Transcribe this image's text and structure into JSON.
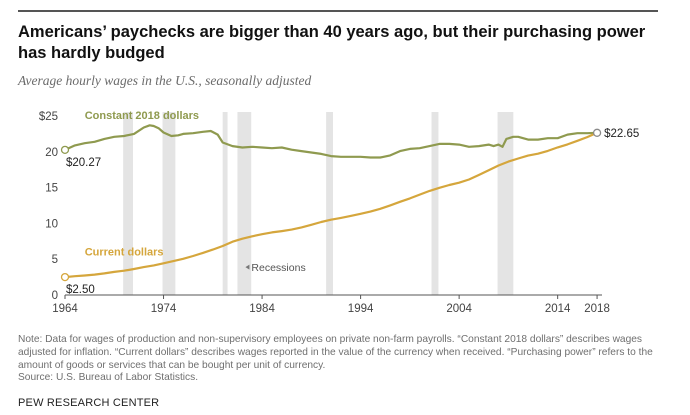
{
  "title": "Americans’ paychecks are bigger than 40 years ago, but their purchasing power has hardly budged",
  "subtitle": "Average hourly wages in the U.S., seasonally adjusted",
  "note": "Note: Data for wages of production and non-supervisory employees on private non-farm payrolls. “Constant 2018 dollars” describes wages adjusted for inflation. “Current dollars” describes wages reported in the value of the currency when received. “Purchasing power” refers to the amount of goods or services that can be bought per unit of currency.",
  "source": "Source: U.S. Bureau of Labor Statistics.",
  "brand": "PEW RESEARCH CENTER",
  "colors": {
    "constant": "#8f9a4f",
    "current": "#d5a63c",
    "recession": "#e4e4e4",
    "axis": "#555555",
    "text": "#444444"
  },
  "chart_data": {
    "type": "line",
    "title": "Americans’ paychecks are bigger than 40 years ago, but their purchasing power has hardly budged",
    "subtitle": "Average hourly wages in the U.S., seasonally adjusted",
    "xlim": [
      1964,
      2018.5
    ],
    "ylim": [
      0,
      25
    ],
    "x_ticks": [
      1964,
      1974,
      1984,
      1994,
      2004,
      2014,
      2018
    ],
    "y_ticks": [
      0,
      5,
      10,
      15,
      20,
      25
    ],
    "y_tick_labels": [
      "0",
      "5",
      "10",
      "15",
      "20",
      "$25"
    ],
    "grid": false,
    "recessions_label": "Recessions",
    "recessions": [
      [
        1969.9,
        1970.9
      ],
      [
        1973.9,
        1975.2
      ],
      [
        1980.0,
        1980.5
      ],
      [
        1981.5,
        1982.9
      ],
      [
        1990.5,
        1991.2
      ],
      [
        2001.2,
        2001.9
      ],
      [
        2007.9,
        2009.5
      ]
    ],
    "series": [
      {
        "name": "Constant 2018 dollars",
        "color": "#8f9a4f",
        "start_label": "$20.27",
        "end_label": "$22.65",
        "points": [
          [
            1964,
            20.27
          ],
          [
            1965,
            20.9
          ],
          [
            1966,
            21.2
          ],
          [
            1967,
            21.4
          ],
          [
            1968,
            21.8
          ],
          [
            1969,
            22.1
          ],
          [
            1970,
            22.2
          ],
          [
            1971,
            22.5
          ],
          [
            1972,
            23.4
          ],
          [
            1972.6,
            23.7
          ],
          [
            1973,
            23.6
          ],
          [
            1973.5,
            23.3
          ],
          [
            1974,
            22.7
          ],
          [
            1974.8,
            22.2
          ],
          [
            1975.5,
            22.3
          ],
          [
            1976,
            22.5
          ],
          [
            1977,
            22.6
          ],
          [
            1978,
            22.8
          ],
          [
            1978.8,
            22.9
          ],
          [
            1979.5,
            22.4
          ],
          [
            1980,
            21.3
          ],
          [
            1981,
            20.8
          ],
          [
            1982,
            20.6
          ],
          [
            1983,
            20.7
          ],
          [
            1984,
            20.6
          ],
          [
            1985,
            20.5
          ],
          [
            1986,
            20.6
          ],
          [
            1987,
            20.3
          ],
          [
            1988,
            20.1
          ],
          [
            1989,
            19.9
          ],
          [
            1990,
            19.7
          ],
          [
            1991,
            19.4
          ],
          [
            1992,
            19.3
          ],
          [
            1993,
            19.3
          ],
          [
            1994,
            19.3
          ],
          [
            1995,
            19.2
          ],
          [
            1996,
            19.2
          ],
          [
            1997,
            19.5
          ],
          [
            1998,
            20.1
          ],
          [
            1999,
            20.4
          ],
          [
            2000,
            20.5
          ],
          [
            2001,
            20.8
          ],
          [
            2002,
            21.1
          ],
          [
            2003,
            21.1
          ],
          [
            2004,
            21.0
          ],
          [
            2005,
            20.7
          ],
          [
            2006,
            20.8
          ],
          [
            2007,
            21.0
          ],
          [
            2007.5,
            20.8
          ],
          [
            2008,
            21.0
          ],
          [
            2008.4,
            20.7
          ],
          [
            2008.8,
            21.8
          ],
          [
            2009.5,
            22.1
          ],
          [
            2010,
            22.1
          ],
          [
            2011,
            21.7
          ],
          [
            2012,
            21.7
          ],
          [
            2013,
            21.9
          ],
          [
            2014,
            21.9
          ],
          [
            2015,
            22.4
          ],
          [
            2016,
            22.6
          ],
          [
            2017,
            22.6
          ],
          [
            2018,
            22.65
          ]
        ]
      },
      {
        "name": "Current dollars",
        "color": "#d5a63c",
        "start_label": "$2.50",
        "end_label": "",
        "points": [
          [
            1964,
            2.5
          ],
          [
            1965,
            2.63
          ],
          [
            1966,
            2.73
          ],
          [
            1967,
            2.85
          ],
          [
            1968,
            3.02
          ],
          [
            1969,
            3.22
          ],
          [
            1970,
            3.4
          ],
          [
            1971,
            3.63
          ],
          [
            1972,
            3.9
          ],
          [
            1973,
            4.14
          ],
          [
            1974,
            4.43
          ],
          [
            1975,
            4.73
          ],
          [
            1976,
            5.06
          ],
          [
            1977,
            5.44
          ],
          [
            1978,
            5.88
          ],
          [
            1979,
            6.34
          ],
          [
            1980,
            6.85
          ],
          [
            1981,
            7.44
          ],
          [
            1982,
            7.87
          ],
          [
            1983,
            8.2
          ],
          [
            1984,
            8.49
          ],
          [
            1985,
            8.74
          ],
          [
            1986,
            8.93
          ],
          [
            1987,
            9.14
          ],
          [
            1988,
            9.44
          ],
          [
            1989,
            9.8
          ],
          [
            1990,
            10.2
          ],
          [
            1991,
            10.52
          ],
          [
            1992,
            10.77
          ],
          [
            1993,
            11.05
          ],
          [
            1994,
            11.34
          ],
          [
            1995,
            11.65
          ],
          [
            1996,
            12.04
          ],
          [
            1997,
            12.51
          ],
          [
            1998,
            13.01
          ],
          [
            1999,
            13.49
          ],
          [
            2000,
            14.02
          ],
          [
            2001,
            14.54
          ],
          [
            2002,
            14.97
          ],
          [
            2003,
            15.37
          ],
          [
            2004,
            15.69
          ],
          [
            2005,
            16.13
          ],
          [
            2006,
            16.76
          ],
          [
            2007,
            17.43
          ],
          [
            2008,
            18.08
          ],
          [
            2009,
            18.63
          ],
          [
            2010,
            19.07
          ],
          [
            2011,
            19.47
          ],
          [
            2012,
            19.74
          ],
          [
            2013,
            20.13
          ],
          [
            2014,
            20.61
          ],
          [
            2015,
            21.03
          ],
          [
            2016,
            21.54
          ],
          [
            2017,
            22.05
          ],
          [
            2018,
            22.65
          ]
        ]
      }
    ]
  }
}
